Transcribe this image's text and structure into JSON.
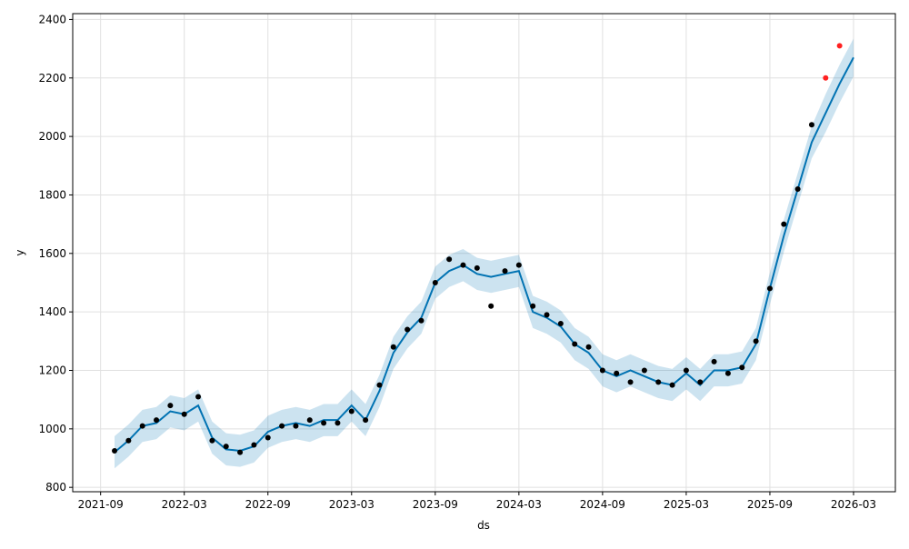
{
  "chart_data": {
    "type": "line",
    "xlabel": "ds",
    "ylabel": "y",
    "x": [
      "2021-10",
      "2021-11",
      "2021-12",
      "2022-01",
      "2022-02",
      "2022-03",
      "2022-04",
      "2022-05",
      "2022-06",
      "2022-07",
      "2022-08",
      "2022-09",
      "2022-10",
      "2022-11",
      "2022-12",
      "2023-01",
      "2023-02",
      "2023-03",
      "2023-04",
      "2023-05",
      "2023-06",
      "2023-07",
      "2023-08",
      "2023-09",
      "2023-10",
      "2023-11",
      "2023-12",
      "2024-01",
      "2024-02",
      "2024-03",
      "2024-04",
      "2024-05",
      "2024-06",
      "2024-07",
      "2024-08",
      "2024-09",
      "2024-10",
      "2024-11",
      "2024-12",
      "2025-01",
      "2025-02",
      "2025-03",
      "2025-04",
      "2025-05",
      "2025-06",
      "2025-07",
      "2025-08",
      "2025-09",
      "2025-10",
      "2025-11",
      "2025-12",
      "2026-01",
      "2026-02",
      "2026-03"
    ],
    "band": {
      "color": "#0072B2",
      "lower": [
        865,
        905,
        955,
        965,
        1005,
        995,
        1025,
        915,
        875,
        870,
        885,
        935,
        955,
        965,
        955,
        975,
        975,
        1025,
        975,
        1075,
        1205,
        1275,
        1325,
        1445,
        1485,
        1505,
        1475,
        1465,
        1475,
        1485,
        1345,
        1325,
        1295,
        1235,
        1205,
        1145,
        1125,
        1145,
        1125,
        1105,
        1095,
        1135,
        1095,
        1145,
        1145,
        1155,
        1235,
        1425,
        1605,
        1765,
        1925,
        2015,
        2115,
        2205
      ],
      "upper": [
        975,
        1015,
        1065,
        1075,
        1115,
        1105,
        1135,
        1025,
        985,
        980,
        995,
        1045,
        1065,
        1075,
        1065,
        1085,
        1085,
        1135,
        1085,
        1185,
        1315,
        1385,
        1435,
        1555,
        1595,
        1615,
        1585,
        1575,
        1585,
        1595,
        1455,
        1435,
        1405,
        1345,
        1315,
        1255,
        1235,
        1255,
        1235,
        1215,
        1205,
        1245,
        1205,
        1255,
        1255,
        1265,
        1345,
        1535,
        1715,
        1875,
        2035,
        2145,
        2245,
        2335
      ]
    },
    "series": [
      {
        "mark": "line",
        "color": "#0072B2",
        "values": [
          920,
          960,
          1010,
          1020,
          1060,
          1050,
          1080,
          970,
          930,
          925,
          940,
          990,
          1010,
          1020,
          1010,
          1030,
          1030,
          1080,
          1030,
          1130,
          1260,
          1330,
          1380,
          1500,
          1540,
          1560,
          1530,
          1520,
          1530,
          1540,
          1400,
          1380,
          1350,
          1290,
          1260,
          1200,
          1180,
          1200,
          1180,
          1160,
          1150,
          1190,
          1150,
          1200,
          1200,
          1210,
          1290,
          1480,
          1660,
          1820,
          1980,
          2080,
          2180,
          2270
        ]
      },
      {
        "mark": "points",
        "color": "#000000",
        "values": [
          925,
          960,
          1010,
          1030,
          1080,
          1050,
          1110,
          960,
          940,
          920,
          945,
          970,
          1010,
          1010,
          1030,
          1020,
          1020,
          1060,
          1030,
          1150,
          1280,
          1340,
          1370,
          1500,
          1580,
          1560,
          1550,
          1420,
          1540,
          1560,
          1420,
          1390,
          1360,
          1290,
          1280,
          1200,
          1190,
          1160,
          1200,
          1160,
          1150,
          1200,
          1160,
          1230,
          1190,
          1210,
          1300,
          1480,
          1700,
          1820,
          2040,
          null,
          null,
          null
        ]
      },
      {
        "mark": "points",
        "color": "#ff2020",
        "values": [
          null,
          null,
          null,
          null,
          null,
          null,
          null,
          null,
          null,
          null,
          null,
          null,
          null,
          null,
          null,
          null,
          null,
          null,
          null,
          null,
          null,
          null,
          null,
          null,
          null,
          null,
          null,
          null,
          null,
          null,
          null,
          null,
          null,
          null,
          null,
          null,
          null,
          null,
          null,
          null,
          null,
          null,
          null,
          null,
          null,
          null,
          null,
          null,
          null,
          null,
          null,
          2200,
          2310,
          null
        ]
      }
    ],
    "xlim": [
      "2021-07",
      "2026-06"
    ],
    "xticks": [
      "2021-09",
      "2022-03",
      "2022-09",
      "2023-03",
      "2023-09",
      "2024-03",
      "2024-09",
      "2025-03",
      "2025-09",
      "2026-03"
    ],
    "ylim": [
      785,
      2420
    ],
    "yticks": [
      800,
      1000,
      1200,
      1400,
      1600,
      1800,
      2000,
      2200,
      2400
    ],
    "grid": true
  }
}
